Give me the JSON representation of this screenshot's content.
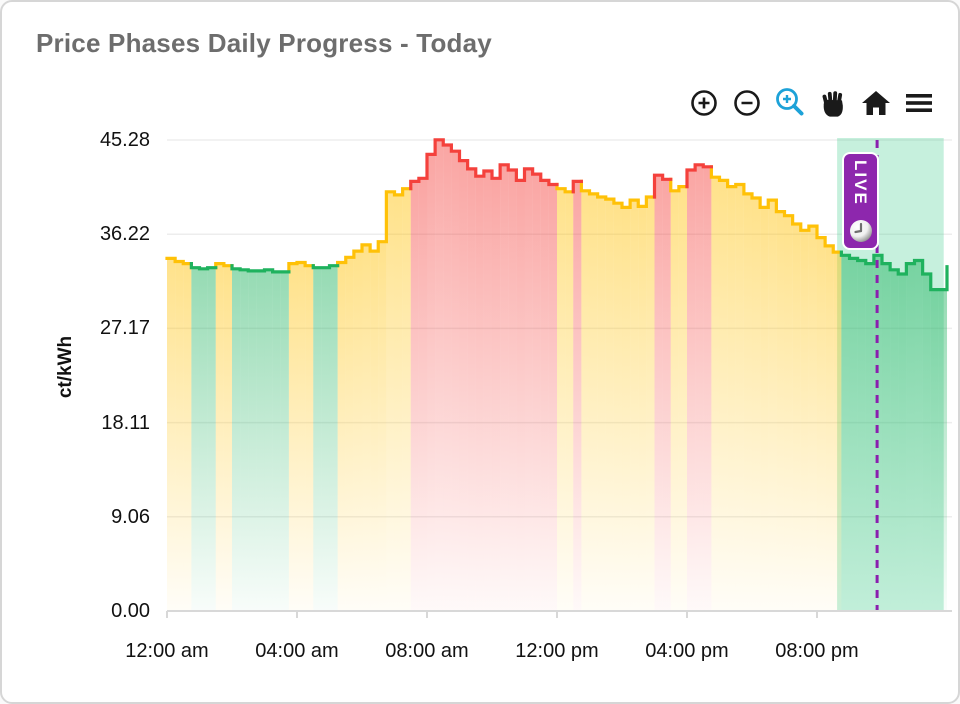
{
  "card": {
    "title": "Price Phases Daily Progress - Today"
  },
  "toolbar": {
    "accent_color": "#1da2d8",
    "buttons": [
      {
        "icon": "zoom-in-icon",
        "active": false
      },
      {
        "icon": "zoom-out-icon",
        "active": false
      },
      {
        "icon": "box-zoom-icon",
        "active": true
      },
      {
        "icon": "pan-icon",
        "active": false
      },
      {
        "icon": "home-icon",
        "active": false
      },
      {
        "icon": "menu-icon",
        "active": false
      }
    ]
  },
  "live_badge": {
    "label": "LIVE",
    "icon": "clock-icon",
    "color": "#8d27ad"
  },
  "y_axis": {
    "label": "ct/kWh",
    "ticks": [
      "45.28",
      "36.22",
      "27.17",
      "18.11",
      "9.06",
      "0.00"
    ]
  },
  "x_axis": {
    "ticks": [
      "12:00 am",
      "04:00 am",
      "08:00 am",
      "12:00 pm",
      "04:00 pm",
      "08:00 pm"
    ]
  },
  "chart_data": {
    "type": "area",
    "title": "Price Phases Daily Progress - Today",
    "ylabel": "ct/kWh",
    "ylim": [
      0,
      45.28
    ],
    "y_tick_values": [
      0,
      9.06,
      18.11,
      27.17,
      36.22,
      45.28
    ],
    "x_hours_range": [
      0,
      24
    ],
    "x_tick_hours": [
      0,
      4,
      8,
      12,
      16,
      20
    ],
    "step_minutes": 15,
    "start_time": "00:00",
    "grid": "horizontal",
    "legend": "none",
    "phase_colors": {
      "g": "#1fb25e",
      "y": "#ffc107",
      "r": "#f4413c"
    },
    "future_region": {
      "start_hour": 20.62,
      "end_hour": 23.9,
      "color": "rgba(46,199,130,0.27)"
    },
    "live_line": {
      "hour": 21.85,
      "color": "#8a1fae",
      "style": "dashed"
    },
    "phases": "yyygggyygggggggyyygggyyyyyyyyyrrrrrrrrrrrrrrrrrryyryyyyyyyyyrryyrrryyyyyyyyyyyyyyyyggggggggggggg",
    "values": [
      33.9,
      33.6,
      33.4,
      33.0,
      32.9,
      33.0,
      33.4,
      33.2,
      32.9,
      32.8,
      32.7,
      32.7,
      32.8,
      32.6,
      32.6,
      33.4,
      33.5,
      33.2,
      33.0,
      33.0,
      33.2,
      33.5,
      34.0,
      34.6,
      35.2,
      34.6,
      35.5,
      40.3,
      40.0,
      40.6,
      41.3,
      41.6,
      43.9,
      45.3,
      44.8,
      44.2,
      43.3,
      42.5,
      41.8,
      42.3,
      41.6,
      42.9,
      42.4,
      41.4,
      42.5,
      42.0,
      41.4,
      41.0,
      40.6,
      40.3,
      41.3,
      40.4,
      40.1,
      39.8,
      39.6,
      39.2,
      38.8,
      39.5,
      38.9,
      39.8,
      41.9,
      41.5,
      40.4,
      40.8,
      42.4,
      42.9,
      42.7,
      41.7,
      41.4,
      40.8,
      41.0,
      40.1,
      39.7,
      38.8,
      39.5,
      38.4,
      38.0,
      37.2,
      36.6,
      37.0,
      35.9,
      35.1,
      34.5,
      34.2,
      33.9,
      33.7,
      33.4,
      34.2,
      33.4,
      32.8,
      32.4,
      33.4,
      33.7,
      32.4,
      30.9,
      30.9
    ],
    "end_value": 33.1
  }
}
